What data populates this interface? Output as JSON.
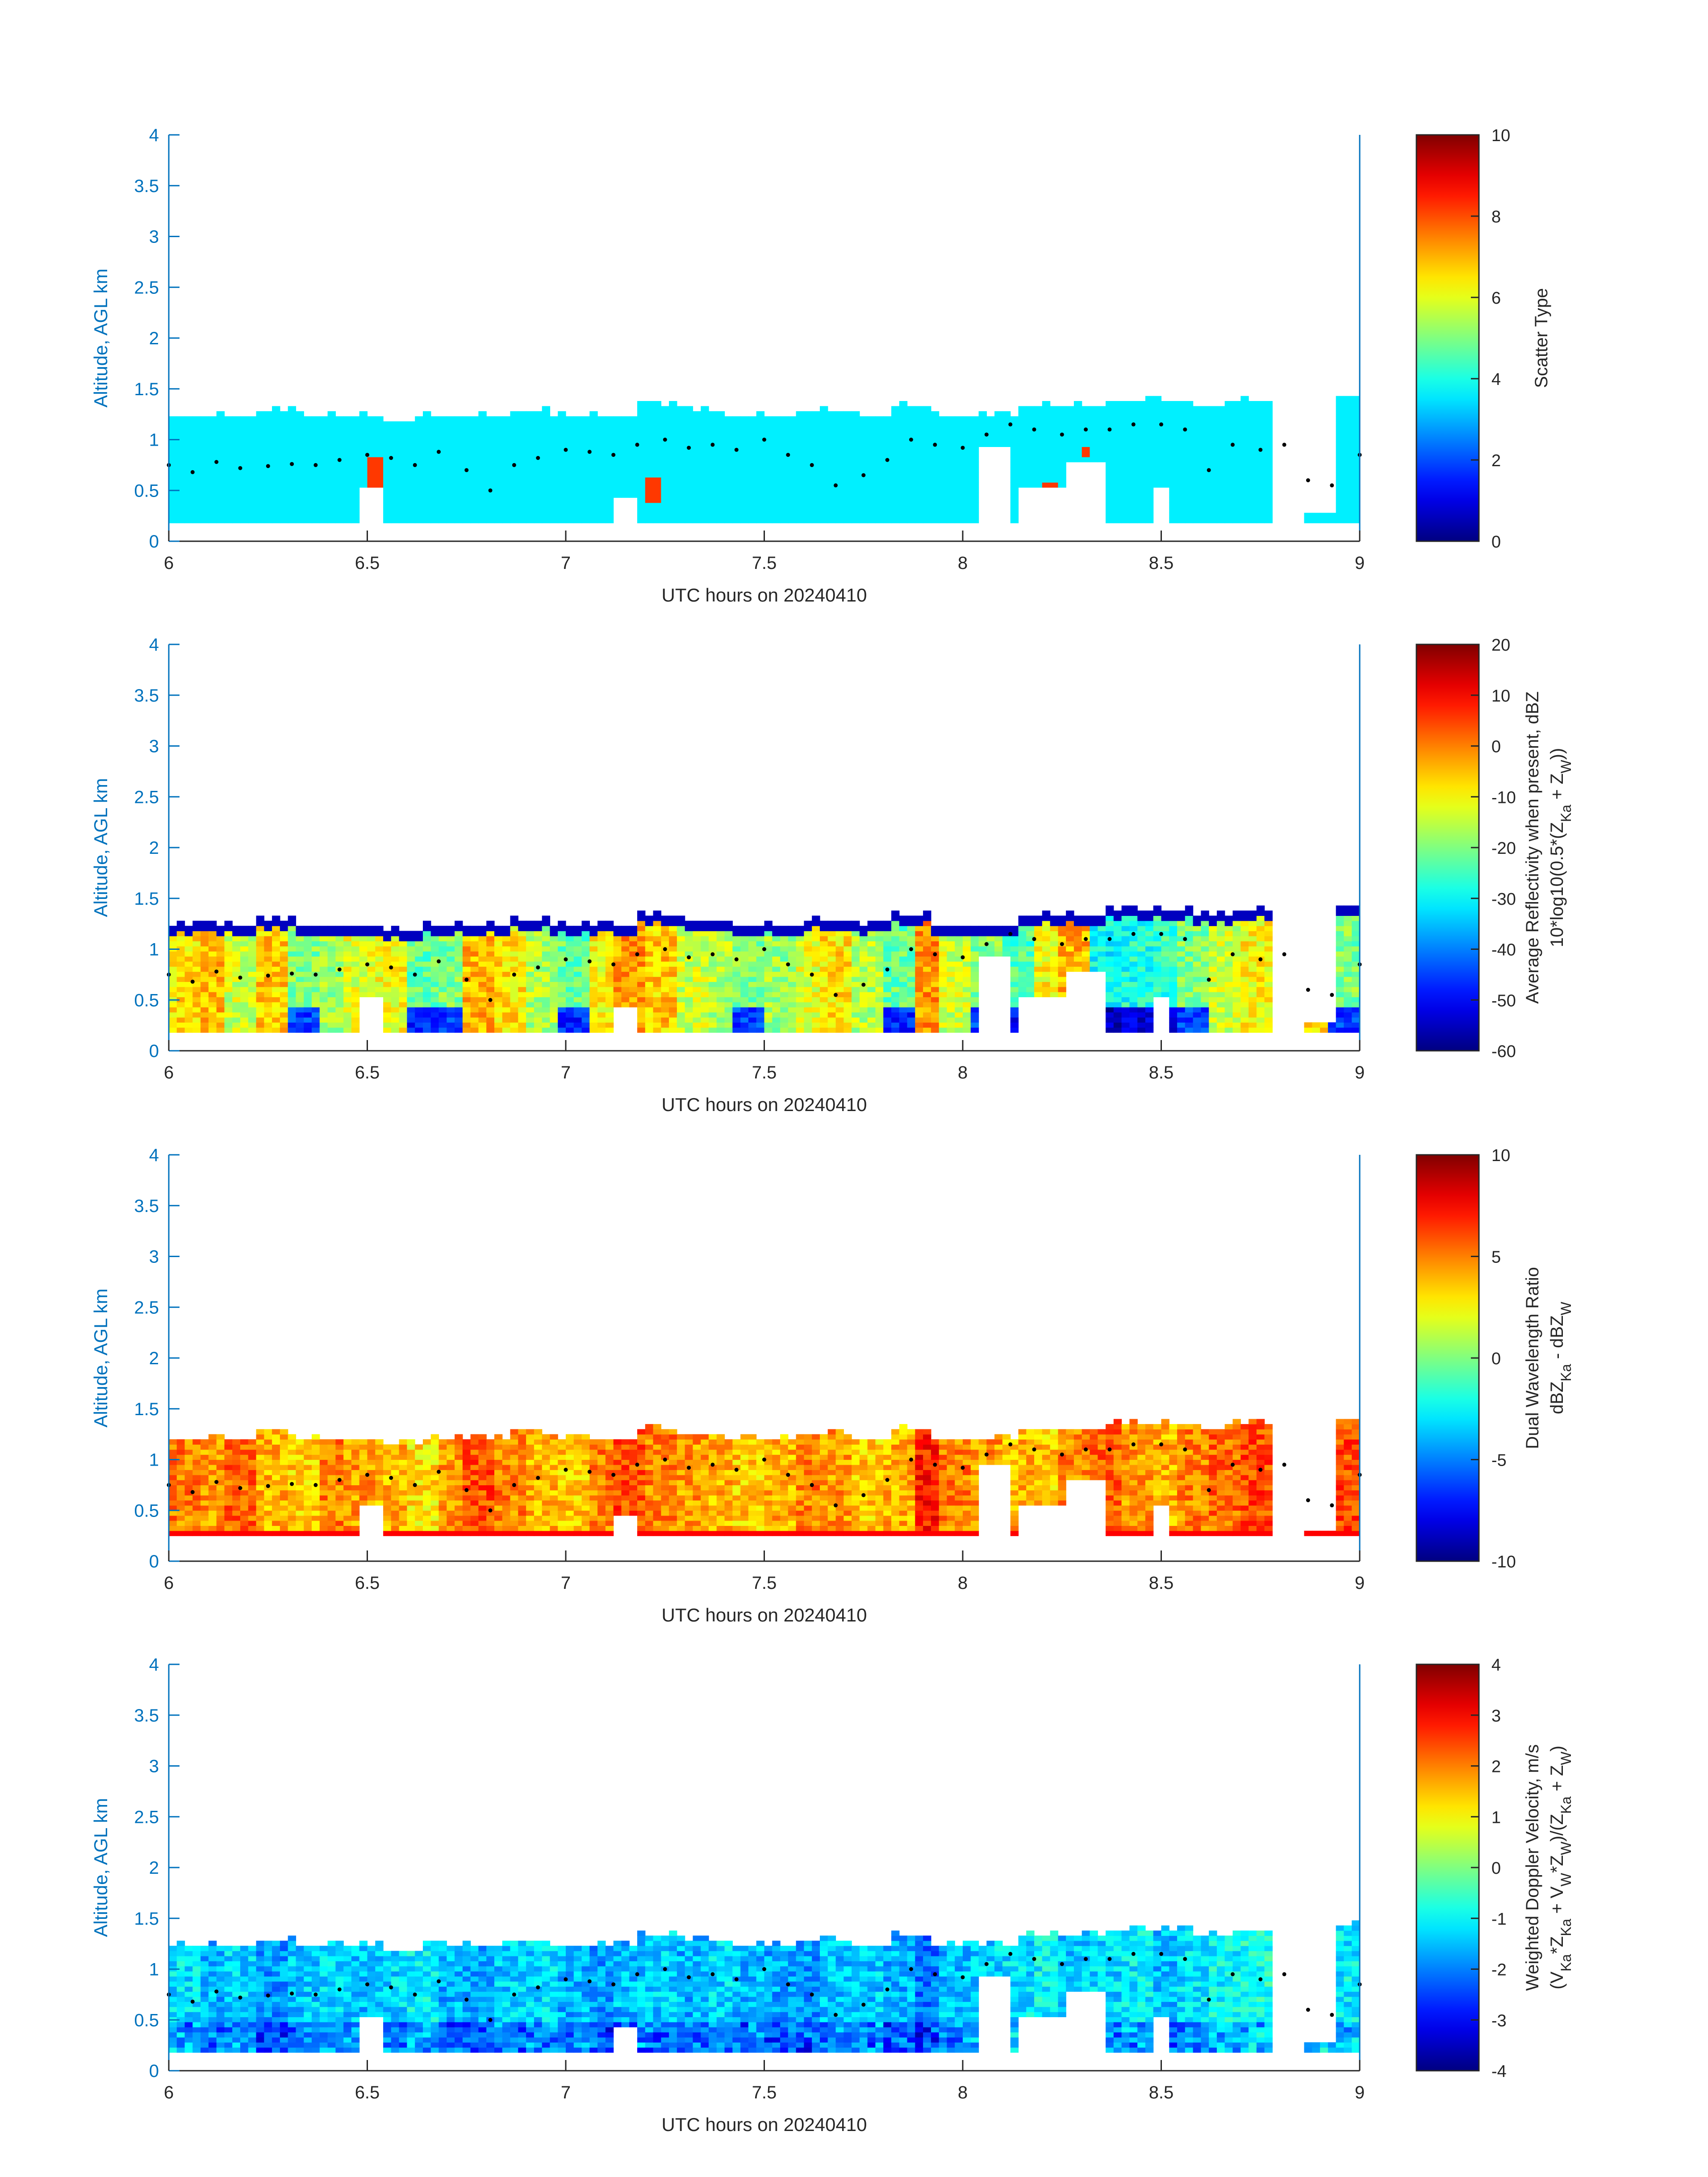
{
  "colors": {
    "axis_blue": "#0072bd",
    "text_dark": "#262626",
    "data_dot": "#000000"
  },
  "chart_data": [
    {
      "type": "heatmap",
      "title": "",
      "xlabel": "UTC hours on 20240410",
      "ylabel": "Altitude, AGL km",
      "xlim": [
        6,
        9
      ],
      "ylim": [
        0,
        4
      ],
      "x_ticks": [
        6,
        6.5,
        7,
        7.5,
        8,
        8.5,
        9
      ],
      "y_ticks": [
        0,
        0.5,
        1,
        1.5,
        2,
        2.5,
        3,
        3.5,
        4
      ],
      "colorbar": {
        "label": "Scatter Type",
        "sublabel": "",
        "range": [
          0,
          10
        ],
        "ticks": [
          0,
          2,
          4,
          6,
          8,
          10
        ],
        "colormap": "jet"
      },
      "cloud_top_km": [
        1.2,
        1.2,
        1.25,
        1.2,
        1.2,
        1.15,
        1.2,
        1.2,
        1.25,
        1.2,
        1.2,
        1.3,
        1.25,
        1.2,
        1.2,
        1.25,
        1.2,
        1.3,
        1.2,
        1.2,
        1.3,
        1.3,
        1.35,
        1.35,
        1.3,
        1.35,
        1.4,
        1.4
      ],
      "cloud_base_km": 0.18,
      "dominant_value": 3.6,
      "layer_dots": {
        "x": [
          6.0,
          6.06,
          6.12,
          6.18,
          6.25,
          6.31,
          6.37,
          6.43,
          6.5,
          6.56,
          6.62,
          6.68,
          6.75,
          6.81,
          6.87,
          6.93,
          7.0,
          7.06,
          7.12,
          7.18,
          7.25,
          7.31,
          7.37,
          7.43,
          7.5,
          7.56,
          7.62,
          7.68,
          7.75,
          7.81,
          7.87,
          7.93,
          8.0,
          8.06,
          8.12,
          8.18,
          8.25,
          8.31,
          8.37,
          8.43,
          8.5,
          8.56,
          8.62,
          8.68,
          8.75,
          8.81,
          8.87,
          8.93,
          9.0
        ],
        "y": [
          0.75,
          0.68,
          0.78,
          0.72,
          0.74,
          0.76,
          0.75,
          0.8,
          0.85,
          0.82,
          0.75,
          0.88,
          0.7,
          0.5,
          0.75,
          0.82,
          0.9,
          0.88,
          0.85,
          0.95,
          1.0,
          0.92,
          0.95,
          0.9,
          1.0,
          0.85,
          0.75,
          0.55,
          0.65,
          0.8,
          1.0,
          0.95,
          0.92,
          1.05,
          1.15,
          1.1,
          1.05,
          1.1,
          1.1,
          1.15,
          1.15,
          1.1,
          0.7,
          0.95,
          0.9,
          0.95,
          0.6,
          0.55,
          0.85
        ]
      },
      "gaps": [
        [
          6.48,
          6.54,
          0.0,
          0.55
        ],
        [
          7.13,
          7.17,
          0.0,
          0.45
        ],
        [
          8.04,
          8.11,
          0.0,
          0.95
        ],
        [
          8.13,
          8.25,
          0.0,
          0.55
        ],
        [
          8.26,
          8.37,
          0.0,
          0.8
        ],
        [
          8.48,
          8.52,
          0.0,
          0.55
        ],
        [
          8.79,
          8.87,
          0.0,
          1.5
        ],
        [
          8.87,
          8.94,
          0.3,
          1.5
        ]
      ],
      "accent_patches": [
        [
          6.5,
          6.54,
          0.18,
          0.85
        ],
        [
          7.2,
          7.24,
          0.4,
          0.65
        ],
        [
          8.05,
          8.07,
          0.18,
          0.3
        ],
        [
          8.2,
          8.24,
          0.18,
          0.6
        ],
        [
          8.3,
          8.32,
          0.85,
          0.95
        ],
        [
          8.78,
          8.8,
          0.18,
          0.3
        ]
      ],
      "accent_value": 8.2
    },
    {
      "type": "heatmap",
      "title": "",
      "xlabel": "UTC hours on 20240410",
      "ylabel": "Altitude, AGL km",
      "xlim": [
        6,
        9
      ],
      "ylim": [
        0,
        4
      ],
      "x_ticks": [
        6,
        6.5,
        7,
        7.5,
        8,
        8.5,
        9
      ],
      "y_ticks": [
        0,
        0.5,
        1,
        1.5,
        2,
        2.5,
        3,
        3.5,
        4
      ],
      "colorbar": {
        "label": "Average Reflectivity when present, dBZ",
        "sublabel": "10*log10(0.5*(Z_Ka + Z_W))",
        "range": [
          -60,
          20
        ],
        "ticks": [
          -60,
          -50,
          -40,
          -30,
          -20,
          -10,
          0,
          10,
          20
        ],
        "colormap": "jet"
      },
      "cloud_top_km": [
        1.2,
        1.2,
        1.25,
        1.2,
        1.2,
        1.15,
        1.2,
        1.2,
        1.25,
        1.2,
        1.2,
        1.3,
        1.25,
        1.2,
        1.2,
        1.25,
        1.2,
        1.3,
        1.2,
        1.2,
        1.3,
        1.3,
        1.35,
        1.35,
        1.3,
        1.35,
        1.4,
        1.4
      ],
      "cloud_base_km": 0.18,
      "column_values": [
        -8,
        -5,
        -14,
        -6,
        -20,
        -18,
        -12,
        -10,
        -22,
        -20,
        -4,
        -8,
        -16,
        -22,
        -10,
        -2,
        -6,
        -14,
        -16,
        -20,
        -18,
        -12,
        -8,
        -16,
        -22,
        -2,
        -14,
        -20,
        -24,
        -10,
        -4,
        -30,
        -28,
        -26,
        -20,
        -14,
        -10,
        -24,
        -6,
        -20
      ],
      "layer_dots": {
        "x": [
          6.0,
          6.06,
          6.12,
          6.18,
          6.25,
          6.31,
          6.37,
          6.43,
          6.5,
          6.56,
          6.62,
          6.68,
          6.75,
          6.81,
          6.87,
          6.93,
          7.0,
          7.06,
          7.12,
          7.18,
          7.25,
          7.31,
          7.37,
          7.43,
          7.5,
          7.56,
          7.62,
          7.68,
          7.75,
          7.81,
          7.87,
          7.93,
          8.0,
          8.06,
          8.12,
          8.18,
          8.25,
          8.31,
          8.37,
          8.43,
          8.5,
          8.56,
          8.62,
          8.68,
          8.75,
          8.81,
          8.87,
          8.93,
          9.0
        ],
        "y": [
          0.75,
          0.68,
          0.78,
          0.72,
          0.74,
          0.76,
          0.75,
          0.8,
          0.85,
          0.82,
          0.75,
          0.88,
          0.7,
          0.5,
          0.75,
          0.82,
          0.9,
          0.88,
          0.85,
          0.95,
          1.0,
          0.92,
          0.95,
          0.9,
          1.0,
          0.85,
          0.75,
          0.55,
          0.65,
          0.8,
          1.0,
          0.95,
          0.92,
          1.05,
          1.15,
          1.1,
          1.05,
          1.1,
          1.1,
          1.15,
          1.15,
          1.1,
          0.7,
          0.95,
          0.9,
          0.95,
          0.6,
          0.55,
          0.85
        ]
      },
      "gaps": [
        [
          6.48,
          6.54,
          0.0,
          0.55
        ],
        [
          7.13,
          7.17,
          0.0,
          0.45
        ],
        [
          8.04,
          8.11,
          0.0,
          0.95
        ],
        [
          8.13,
          8.25,
          0.0,
          0.55
        ],
        [
          8.26,
          8.37,
          0.0,
          0.8
        ],
        [
          8.48,
          8.52,
          0.0,
          0.55
        ],
        [
          8.79,
          8.87,
          0.0,
          1.5
        ],
        [
          8.87,
          8.94,
          0.3,
          1.5
        ]
      ],
      "edge_value": -55
    },
    {
      "type": "heatmap",
      "title": "",
      "xlabel": "UTC hours on 20240410",
      "ylabel": "Altitude, AGL km",
      "xlim": [
        6,
        9
      ],
      "ylim": [
        0,
        4
      ],
      "x_ticks": [
        6,
        6.5,
        7,
        7.5,
        8,
        8.5,
        9
      ],
      "y_ticks": [
        0,
        0.5,
        1,
        1.5,
        2,
        2.5,
        3,
        3.5,
        4
      ],
      "colorbar": {
        "label": "Dual Wavelength Ratio",
        "sublabel": "dBZ_Ka - dBZ_W",
        "range": [
          -10,
          10
        ],
        "ticks": [
          -10,
          -5,
          0,
          5,
          10
        ],
        "colormap": "jet"
      },
      "cloud_top_km": [
        1.2,
        1.2,
        1.25,
        1.2,
        1.2,
        1.15,
        1.2,
        1.2,
        1.25,
        1.2,
        1.2,
        1.3,
        1.25,
        1.2,
        1.2,
        1.25,
        1.2,
        1.3,
        1.2,
        1.2,
        1.3,
        1.3,
        1.35,
        1.35,
        1.3,
        1.35,
        1.4,
        1.4
      ],
      "cloud_base_km": 0.25,
      "column_values": [
        5,
        4.5,
        5.5,
        4,
        3.5,
        5,
        4.5,
        4,
        3,
        4.5,
        6,
        5,
        4,
        3.5,
        5,
        6,
        5,
        4.5,
        4,
        3.5,
        4,
        5,
        4.5,
        3.5,
        4,
        7,
        5,
        4.5,
        4,
        3.5,
        5,
        5.5,
        4.5,
        4,
        5,
        5.5,
        6,
        4.5,
        5,
        6
      ],
      "layer_dots": {
        "x": [
          6.0,
          6.06,
          6.12,
          6.18,
          6.25,
          6.31,
          6.37,
          6.43,
          6.5,
          6.56,
          6.62,
          6.68,
          6.75,
          6.81,
          6.87,
          6.93,
          7.0,
          7.06,
          7.12,
          7.18,
          7.25,
          7.31,
          7.37,
          7.43,
          7.5,
          7.56,
          7.62,
          7.68,
          7.75,
          7.81,
          7.87,
          7.93,
          8.0,
          8.06,
          8.12,
          8.18,
          8.25,
          8.31,
          8.37,
          8.43,
          8.5,
          8.56,
          8.62,
          8.68,
          8.75,
          8.81,
          8.87,
          8.93,
          9.0
        ],
        "y": [
          0.75,
          0.68,
          0.78,
          0.72,
          0.74,
          0.76,
          0.75,
          0.8,
          0.85,
          0.82,
          0.75,
          0.88,
          0.7,
          0.5,
          0.75,
          0.82,
          0.9,
          0.88,
          0.85,
          0.95,
          1.0,
          0.92,
          0.95,
          0.9,
          1.0,
          0.85,
          0.75,
          0.55,
          0.65,
          0.8,
          1.0,
          0.95,
          0.92,
          1.05,
          1.15,
          1.1,
          1.05,
          1.1,
          1.1,
          1.15,
          1.15,
          1.1,
          0.7,
          0.95,
          0.9,
          0.95,
          0.6,
          0.55,
          0.85
        ]
      },
      "gaps": [
        [
          6.48,
          6.54,
          0.0,
          0.55
        ],
        [
          7.13,
          7.17,
          0.0,
          0.45
        ],
        [
          8.04,
          8.11,
          0.0,
          0.95
        ],
        [
          8.13,
          8.25,
          0.0,
          0.55
        ],
        [
          8.26,
          8.37,
          0.0,
          0.8
        ],
        [
          8.48,
          8.52,
          0.0,
          0.55
        ],
        [
          8.79,
          8.87,
          0.0,
          1.5
        ],
        [
          8.87,
          8.94,
          0.3,
          1.5
        ]
      ],
      "base_value": 7.5
    },
    {
      "type": "heatmap",
      "title": "",
      "xlabel": "UTC hours on 20240410",
      "ylabel": "Altitude, AGL km",
      "xlim": [
        6,
        9
      ],
      "ylim": [
        0,
        4
      ],
      "x_ticks": [
        6,
        6.5,
        7,
        7.5,
        8,
        8.5,
        9
      ],
      "y_ticks": [
        0,
        0.5,
        1,
        1.5,
        2,
        2.5,
        3,
        3.5,
        4
      ],
      "colorbar": {
        "label": "Weighted Doppler Velocity, m/s",
        "sublabel": "(V_Ka*Z_Ka + V_W*Z_W)/(Z_Ka + Z_W)",
        "range": [
          -4,
          4
        ],
        "ticks": [
          -4,
          -3,
          -2,
          -1,
          0,
          1,
          2,
          3,
          4
        ],
        "colormap": "jet"
      },
      "cloud_top_km": [
        1.2,
        1.2,
        1.25,
        1.2,
        1.2,
        1.15,
        1.2,
        1.2,
        1.25,
        1.2,
        1.2,
        1.3,
        1.25,
        1.2,
        1.2,
        1.25,
        1.2,
        1.3,
        1.2,
        1.2,
        1.3,
        1.3,
        1.35,
        1.35,
        1.3,
        1.35,
        1.4,
        1.4
      ],
      "cloud_base_km": 0.18,
      "column_values": [
        -1.2,
        -1.6,
        -1.3,
        -1.8,
        -1.4,
        -1.2,
        -1.5,
        -1.3,
        -1.1,
        -1.6,
        -1.7,
        -1.4,
        -1.3,
        -1.6,
        -1.8,
        -1.5,
        -1.4,
        -1.6,
        -1.3,
        -1.5,
        -1.7,
        -1.8,
        -1.5,
        -1.4,
        -1.6,
        -2.1,
        -1.5,
        -1.3,
        -1.2,
        -1.0,
        -1.4,
        -1.3,
        -1.1,
        -1.5,
        -1.2,
        -1.0,
        -0.8,
        -1.3,
        -1.0,
        -1.1
      ],
      "layer_dots": {
        "x": [
          6.0,
          6.06,
          6.12,
          6.18,
          6.25,
          6.31,
          6.37,
          6.43,
          6.5,
          6.56,
          6.62,
          6.68,
          6.75,
          6.81,
          6.87,
          6.93,
          7.0,
          7.06,
          7.12,
          7.18,
          7.25,
          7.31,
          7.37,
          7.43,
          7.5,
          7.56,
          7.62,
          7.68,
          7.75,
          7.81,
          7.87,
          7.93,
          8.0,
          8.06,
          8.12,
          8.18,
          8.25,
          8.31,
          8.37,
          8.43,
          8.5,
          8.56,
          8.62,
          8.68,
          8.75,
          8.81,
          8.87,
          8.93,
          9.0
        ],
        "y": [
          0.75,
          0.68,
          0.78,
          0.72,
          0.74,
          0.76,
          0.75,
          0.8,
          0.85,
          0.82,
          0.75,
          0.88,
          0.7,
          0.5,
          0.75,
          0.82,
          0.9,
          0.88,
          0.85,
          0.95,
          1.0,
          0.92,
          0.95,
          0.9,
          1.0,
          0.85,
          0.75,
          0.55,
          0.65,
          0.8,
          1.0,
          0.95,
          0.92,
          1.05,
          1.15,
          1.1,
          1.05,
          1.1,
          1.1,
          1.15,
          1.15,
          1.1,
          0.7,
          0.95,
          0.9,
          0.95,
          0.6,
          0.55,
          0.85
        ]
      },
      "gaps": [
        [
          6.48,
          6.54,
          0.0,
          0.55
        ],
        [
          7.13,
          7.17,
          0.0,
          0.45
        ],
        [
          8.04,
          8.11,
          0.0,
          0.95
        ],
        [
          8.13,
          8.25,
          0.0,
          0.55
        ],
        [
          8.26,
          8.37,
          0.0,
          0.8
        ],
        [
          8.48,
          8.52,
          0.0,
          0.55
        ],
        [
          8.79,
          8.87,
          0.0,
          1.5
        ],
        [
          8.87,
          8.94,
          0.3,
          1.5
        ]
      ]
    }
  ]
}
